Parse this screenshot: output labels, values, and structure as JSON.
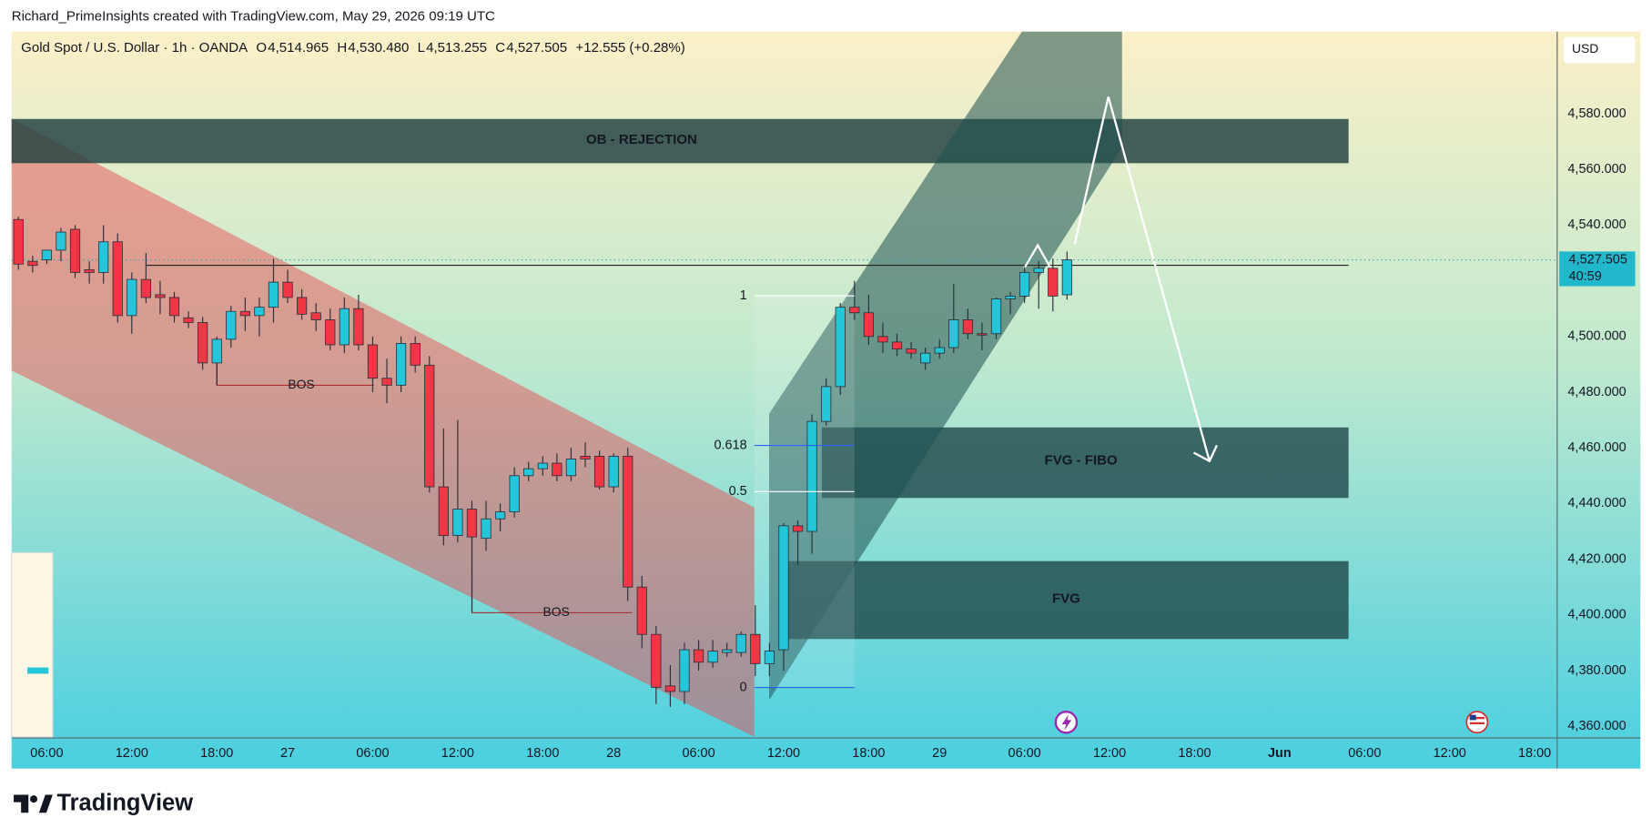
{
  "watermark": "Richard_PrimeInsights created with TradingView.com, May 29, 2026 09:19 UTC",
  "brand": "TradingView",
  "chart_data": {
    "type": "candlestick",
    "title": "Gold Spot / U.S. Dollar · 1h · OANDA",
    "ohlc_header": [
      {
        "key": "O",
        "value": "4,514.965"
      },
      {
        "key": "H",
        "value": "4,530.480"
      },
      {
        "key": "L",
        "value": "4,513.255"
      },
      {
        "key": "C",
        "value": "4,527.505"
      }
    ],
    "change": "+12.555 (+0.28%)",
    "currency": "USD",
    "last_price": {
      "value": 4527.505,
      "label": "4,527.505"
    },
    "countdown": "40:59",
    "up_color": "#26c6da",
    "down_color": "#f23645",
    "categories": [
      null,
      null,
      "06:00",
      null,
      null,
      null,
      null,
      null,
      "12:00",
      null,
      null,
      null,
      null,
      null,
      "18:00",
      null,
      null,
      null,
      null,
      "27",
      null,
      null,
      null,
      null,
      null,
      "06:00",
      null,
      null,
      null,
      null,
      null,
      "12:00",
      null,
      null,
      null,
      null,
      null,
      "18:00",
      null,
      null,
      null,
      null,
      "28",
      null,
      null,
      null,
      null,
      null,
      "06:00",
      null,
      null,
      null,
      null,
      null,
      "12:00",
      null,
      null,
      null,
      null,
      null,
      "18:00",
      null,
      null,
      null,
      null,
      "29",
      null,
      null,
      null,
      null,
      null,
      "06:00",
      null,
      null,
      null,
      null,
      null,
      "12:00",
      null,
      null,
      null,
      null,
      null,
      "18:00",
      null,
      null,
      null,
      null,
      null,
      "Jun",
      null,
      null,
      null,
      null,
      null,
      "06:00",
      null,
      null,
      null,
      null,
      null,
      "12:00",
      null,
      null,
      null,
      null,
      null,
      "18:00"
    ],
    "open": [
      4542,
      4527,
      4527.5,
      4531,
      4538.5,
      4524,
      4523,
      4534,
      4507.5,
      4520.5,
      4515,
      4514,
      4506.7,
      4505,
      4490.5,
      4499,
      4509,
      4507.5,
      4510.5,
      4519.5,
      4514,
      4508.5,
      4506,
      4497,
      4510,
      4497,
      4485,
      4482.5,
      4497.5,
      4489.7,
      4446,
      4428.5,
      4438,
      4427.5,
      4434.5,
      4437,
      4450,
      4452.5,
      4454.5,
      4450,
      4457,
      4457,
      4446,
      4457,
      4410,
      4393,
      4374.5,
      4372.5,
      4387.5,
      4383,
      4386.5,
      4386.5,
      4393,
      4382.5,
      4387.5,
      4432,
      4430,
      4469.5,
      4482,
      4510.5,
      4508.5,
      4500,
      4498,
      4495.5,
      4490.5,
      4494,
      4496,
      4506,
      4501,
      4501,
      4513.5,
      4514.5,
      4523,
      4524.5,
      4514.965,
      null,
      null,
      null,
      null,
      null,
      null,
      null,
      null,
      null,
      null,
      null,
      null,
      null,
      null,
      null,
      null,
      null,
      null,
      null,
      null,
      null,
      null,
      null,
      null,
      null,
      null,
      null,
      null,
      null,
      null,
      null,
      null,
      null
    ],
    "high": [
      4543,
      4529,
      4531,
      4539,
      4540,
      4527,
      4540,
      4537,
      4523,
      4530,
      4520,
      4516,
      4509,
      4507,
      4500,
      4511,
      4514,
      4514,
      4528,
      4524,
      4517,
      4512,
      4510,
      4514,
      4515,
      4500,
      4492,
      4500,
      4500,
      4493,
      4467,
      4470,
      4441,
      4441,
      4440,
      4453,
      4455,
      4457,
      4458,
      4460,
      4462,
      4459,
      4458,
      4460,
      4414,
      4396,
      4382,
      4390,
      4391,
      4391,
      4390,
      4394,
      4403.5,
      4390,
      4433,
      4434,
      4472,
      4485,
      4512,
      4520,
      4515,
      4505,
      4501,
      4498,
      4496,
      4499,
      4519,
      4510,
      4505,
      4514,
      4516,
      4525,
      4527,
      4528,
      4530.48,
      null,
      null,
      null,
      null,
      null,
      null,
      null,
      null,
      null,
      null,
      null,
      null,
      null,
      null,
      null,
      null,
      null,
      null,
      null,
      null,
      null,
      null,
      null,
      null,
      null,
      null,
      null,
      null,
      null,
      null,
      null,
      null,
      null
    ],
    "low": [
      4524,
      4523,
      4526,
      4527,
      4521,
      4519,
      4519,
      4505,
      4501,
      4512,
      4508,
      4505,
      4503,
      4488,
      4482.5,
      4496,
      4502,
      4500,
      4505,
      4512,
      4506,
      4502,
      4495,
      4494,
      4495,
      4480,
      4476,
      4480,
      4487,
      4444,
      4425,
      4426,
      4401,
      4423,
      4430,
      4435,
      4448,
      4450,
      4448,
      4448,
      4453,
      4445,
      4444,
      4405,
      4388,
      4368,
      4367,
      4368,
      4380,
      4381,
      4385,
      4385,
      4378,
      4378,
      4380,
      4418,
      4422,
      4468,
      4479,
      4506,
      4497,
      4494,
      4493,
      4492,
      4488,
      4492,
      4494,
      4499,
      4495,
      4499,
      4508,
      4512,
      4510,
      4509,
      4513.255,
      null,
      null,
      null,
      null,
      null,
      null,
      null,
      null,
      null,
      null,
      null,
      null,
      null,
      null,
      null,
      null,
      null,
      null,
      null,
      null,
      null,
      null,
      null,
      null,
      null,
      null,
      null,
      null,
      null,
      null,
      null,
      null,
      null
    ],
    "close": [
      4526,
      4525.5,
      4531,
      4537.5,
      4523,
      4523,
      4534,
      4507.5,
      4520.5,
      4514,
      4514,
      4507.5,
      4505,
      4490.5,
      4499,
      4509,
      4507.5,
      4510.5,
      4519.5,
      4514,
      4508,
      4506,
      4497,
      4510,
      4497,
      4485,
      4482.5,
      4497.5,
      4489.7,
      4446,
      4428.5,
      4438,
      4428,
      4434.5,
      4437,
      4450,
      4452.5,
      4454.5,
      4450,
      4456,
      4456,
      4446,
      4457,
      4410,
      4393,
      4374,
      4372.5,
      4387.5,
      4383,
      4387,
      4387.5,
      4393,
      4382.5,
      4387,
      4432,
      4430,
      4469.5,
      4482,
      4510.5,
      4508.5,
      4500,
      4498,
      4495.5,
      4494,
      4494,
      4496,
      4506,
      4501,
      4500.5,
      4513.5,
      4514.5,
      4523,
      4524.5,
      4514.5,
      4527.505,
      null,
      null,
      null,
      null,
      null,
      null,
      null,
      null,
      null,
      null,
      null,
      null,
      null,
      null,
      null,
      null,
      null,
      null,
      null,
      null,
      null,
      null,
      null,
      null,
      null,
      null,
      null,
      null,
      null,
      null,
      null,
      null,
      null
    ],
    "ylim": [
      4355.8,
      4609.5
    ],
    "yticks": [
      {
        "value": 4360,
        "label": "4,360.000"
      },
      {
        "value": 4380,
        "label": "4,380.000"
      },
      {
        "value": 4400,
        "label": "4,400.000"
      },
      {
        "value": 4420,
        "label": "4,420.000"
      },
      {
        "value": 4440,
        "label": "4,440.000"
      },
      {
        "value": 4460,
        "label": "4,460.000"
      },
      {
        "value": 4480,
        "label": "4,480.000"
      },
      {
        "value": 4500,
        "label": "4,500.000"
      },
      {
        "value": 4520,
        "label": "4,520.000"
      },
      {
        "value": 4540,
        "label": "4,540.000"
      },
      {
        "value": 4560,
        "label": "4,560.000"
      },
      {
        "value": 4580,
        "label": "4,580.000"
      }
    ],
    "annotations": {
      "zones": [
        "OB - REJECTION",
        "FVG - FIBO",
        "FVG"
      ],
      "bos": [
        "BOS",
        "BOS"
      ],
      "fib_levels": [
        1,
        0.618,
        0.5,
        0
      ]
    }
  }
}
